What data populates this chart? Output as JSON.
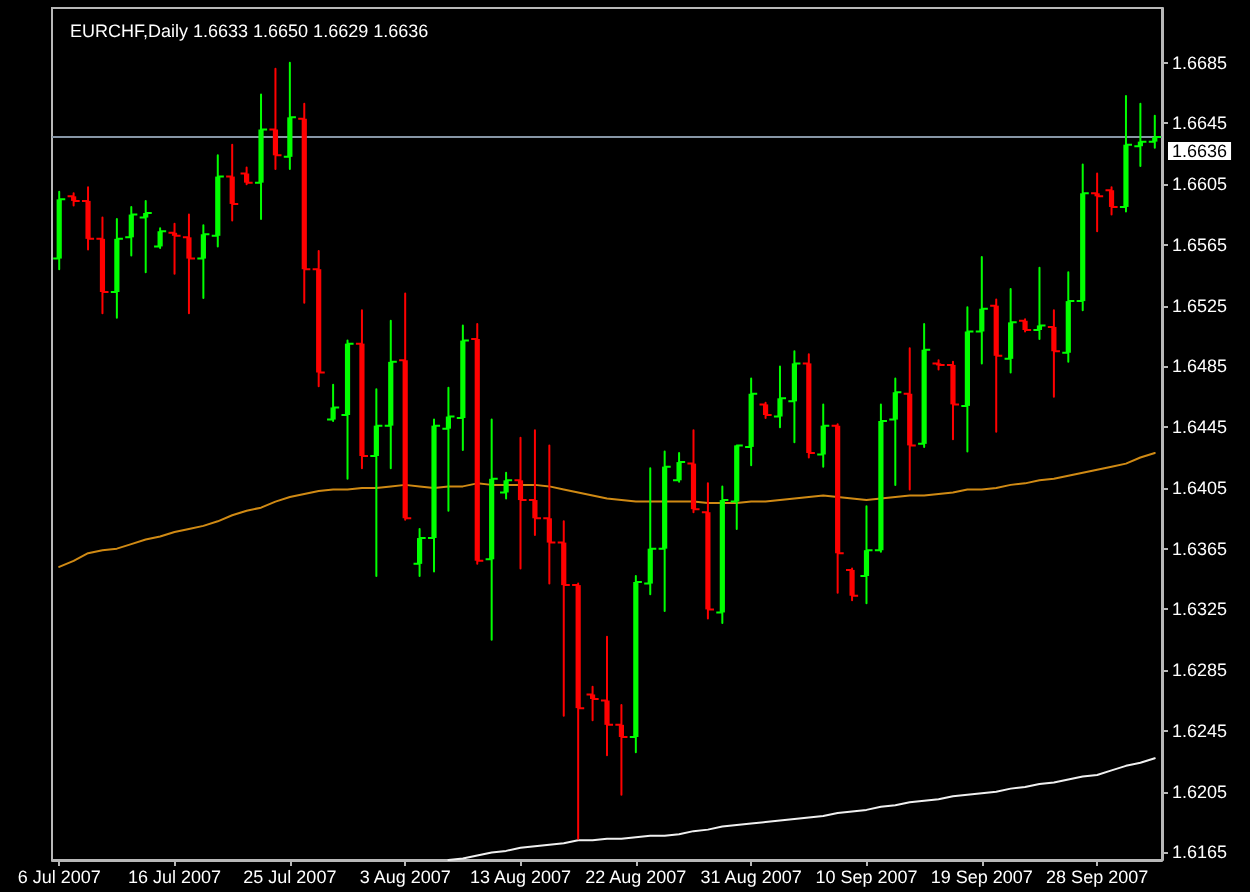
{
  "chart_data": {
    "type": "candlestick",
    "title": "EURCHF,Daily 1.6633 1.6650 1.6629 1.6636",
    "categories": [
      "6 Jul 2007",
      null,
      null,
      null,
      null,
      null,
      null,
      null,
      "16 Jul 2007",
      null,
      null,
      null,
      null,
      null,
      null,
      null,
      "25 Jul 2007",
      null,
      null,
      null,
      null,
      null,
      null,
      null,
      "3 Aug 2007",
      null,
      null,
      null,
      null,
      null,
      null,
      null,
      "13 Aug 2007",
      null,
      null,
      null,
      null,
      null,
      null,
      null,
      "22 Aug 2007",
      null,
      null,
      null,
      null,
      null,
      null,
      null,
      "31 Aug 2007",
      null,
      null,
      null,
      null,
      null,
      null,
      null,
      "10 Sep 2007",
      null,
      null,
      null,
      null,
      null,
      null,
      null,
      "19 Sep 2007",
      null,
      null,
      null,
      null,
      null,
      null,
      null,
      "28 Sep 2007",
      null,
      null,
      null,
      null
    ],
    "ohlc": [
      [
        1.6556,
        1.66,
        1.6549,
        1.6595
      ],
      [
        1.6597,
        1.6599,
        1.6591,
        1.6594
      ],
      [
        1.6594,
        1.6603,
        1.6562,
        1.6569
      ],
      [
        1.6569,
        1.6583,
        1.652,
        1.6534
      ],
      [
        1.6534,
        1.6582,
        1.6517,
        1.6569
      ],
      [
        1.657,
        1.659,
        1.6558,
        1.6585
      ],
      [
        1.6583,
        1.6594,
        1.6547,
        1.6586
      ],
      [
        1.6564,
        1.6576,
        1.6563,
        1.6574
      ],
      [
        1.6573,
        1.6579,
        1.6546,
        1.6571
      ],
      [
        1.657,
        1.6585,
        1.652,
        1.6556
      ],
      [
        1.6556,
        1.6578,
        1.653,
        1.6572
      ],
      [
        1.6571,
        1.6624,
        1.6564,
        1.661
      ],
      [
        1.661,
        1.6631,
        1.6581,
        1.6592
      ],
      [
        1.6612,
        1.6616,
        1.6605,
        1.6606
      ],
      [
        1.6606,
        1.6664,
        1.6582,
        1.6641
      ],
      [
        1.6641,
        1.6681,
        1.6615,
        1.6624
      ],
      [
        1.6623,
        1.6685,
        1.6615,
        1.6649
      ],
      [
        1.6648,
        1.6658,
        1.6527,
        1.6549
      ],
      [
        1.6549,
        1.6561,
        1.6472,
        1.6481
      ],
      [
        1.645,
        1.6473,
        1.6449,
        1.6458
      ],
      [
        1.6453,
        1.6502,
        1.6411,
        1.65
      ],
      [
        1.65,
        1.6522,
        1.6418,
        1.6426
      ],
      [
        1.6426,
        1.647,
        1.6347,
        1.6446
      ],
      [
        1.6446,
        1.6515,
        1.6418,
        1.6488
      ],
      [
        1.6489,
        1.6533,
        1.6384,
        1.6385
      ],
      [
        1.6355,
        1.6378,
        1.6347,
        1.6372
      ],
      [
        1.6372,
        1.645,
        1.635,
        1.6446
      ],
      [
        1.6444,
        1.6471,
        1.639,
        1.6452
      ],
      [
        1.6451,
        1.6512,
        1.643,
        1.6502
      ],
      [
        1.6503,
        1.6513,
        1.6355,
        1.6357
      ],
      [
        1.6358,
        1.645,
        1.6305,
        1.6411
      ],
      [
        1.6402,
        1.6415,
        1.6398,
        1.641
      ],
      [
        1.641,
        1.6438,
        1.6352,
        1.6397
      ],
      [
        1.6397,
        1.6443,
        1.6374,
        1.6385
      ],
      [
        1.6385,
        1.6433,
        1.6342,
        1.6369
      ],
      [
        1.6369,
        1.6383,
        1.6255,
        1.6341
      ],
      [
        1.6341,
        1.6342,
        1.6174,
        1.626
      ],
      [
        1.6269,
        1.6274,
        1.6252,
        1.6266
      ],
      [
        1.6265,
        1.6307,
        1.6229,
        1.6249
      ],
      [
        1.6249,
        1.6262,
        1.6203,
        1.6241
      ],
      [
        1.6241,
        1.6347,
        1.6231,
        1.6343
      ],
      [
        1.6342,
        1.6418,
        1.6335,
        1.6365
      ],
      [
        1.6365,
        1.6429,
        1.6324,
        1.6419
      ],
      [
        1.641,
        1.6428,
        1.6409,
        1.6422
      ],
      [
        1.6421,
        1.6443,
        1.6389,
        1.6391
      ],
      [
        1.6389,
        1.6408,
        1.6319,
        1.6325
      ],
      [
        1.6323,
        1.6406,
        1.6316,
        1.6397
      ],
      [
        1.6396,
        1.6433,
        1.6378,
        1.6433
      ],
      [
        1.6432,
        1.6477,
        1.642,
        1.6467
      ],
      [
        1.646,
        1.6461,
        1.6451,
        1.6453
      ],
      [
        1.6452,
        1.6485,
        1.6445,
        1.6464
      ],
      [
        1.6462,
        1.6495,
        1.6435,
        1.6487
      ],
      [
        1.6487,
        1.6493,
        1.6425,
        1.6428
      ],
      [
        1.6427,
        1.646,
        1.6419,
        1.6446
      ],
      [
        1.6446,
        1.6447,
        1.6336,
        1.6362
      ],
      [
        1.6351,
        1.6352,
        1.6331,
        1.6334
      ],
      [
        1.6347,
        1.6393,
        1.6329,
        1.6364
      ],
      [
        1.6364,
        1.646,
        1.6363,
        1.6449
      ],
      [
        1.645,
        1.6477,
        1.6407,
        1.6468
      ],
      [
        1.6467,
        1.6497,
        1.6404,
        1.6433
      ],
      [
        1.6434,
        1.6513,
        1.6432,
        1.6496
      ],
      [
        1.6487,
        1.6489,
        1.6483,
        1.6486
      ],
      [
        1.6486,
        1.6488,
        1.6437,
        1.646
      ],
      [
        1.6459,
        1.6524,
        1.6429,
        1.6508
      ],
      [
        1.6508,
        1.6557,
        1.6487,
        1.6523
      ],
      [
        1.6525,
        1.6529,
        1.6442,
        1.6492
      ],
      [
        1.649,
        1.6536,
        1.6481,
        1.6514
      ],
      [
        1.6515,
        1.6516,
        1.6508,
        1.6509
      ],
      [
        1.6509,
        1.655,
        1.6503,
        1.6512
      ],
      [
        1.6511,
        1.6522,
        1.6465,
        1.6495
      ],
      [
        1.6494,
        1.6547,
        1.6488,
        1.6528
      ],
      [
        1.6528,
        1.6618,
        1.6522,
        1.6599
      ],
      [
        1.6599,
        1.6612,
        1.6574,
        1.6597
      ],
      [
        1.6601,
        1.6603,
        1.6585,
        1.659
      ],
      [
        1.659,
        1.6663,
        1.6587,
        1.6631
      ],
      [
        1.663,
        1.6658,
        1.6617,
        1.6633
      ],
      [
        1.6633,
        1.665,
        1.6629,
        1.6636
      ]
    ],
    "colors": [
      "#00ff00",
      "#ff0000",
      "#ff0000",
      "#ff0000",
      "#00ff00",
      "#00ff00",
      "#00ff00",
      "#00ff00",
      "#ff0000",
      "#ff0000",
      "#00ff00",
      "#00ff00",
      "#ff0000",
      "#ff0000",
      "#00ff00",
      "#ff0000",
      "#00ff00",
      "#ff0000",
      "#ff0000",
      "#00ff00",
      "#00ff00",
      "#ff0000",
      "#00ff00",
      "#00ff00",
      "#ff0000",
      "#00ff00",
      "#00ff00",
      "#00ff00",
      "#00ff00",
      "#ff0000",
      "#00ff00",
      "#00ff00",
      "#ff0000",
      "#ff0000",
      "#ff0000",
      "#ff0000",
      "#ff0000",
      "#ff0000",
      "#ff0000",
      "#ff0000",
      "#00ff00",
      "#00ff00",
      "#00ff00",
      "#00ff00",
      "#ff0000",
      "#ff0000",
      "#00ff00",
      "#00ff00",
      "#00ff00",
      "#ff0000",
      "#00ff00",
      "#00ff00",
      "#ff0000",
      "#00ff00",
      "#ff0000",
      "#ff0000",
      "#00ff00",
      "#00ff00",
      "#00ff00",
      "#ff0000",
      "#00ff00",
      "#ff0000",
      "#ff0000",
      "#00ff00",
      "#00ff00",
      "#ff0000",
      "#00ff00",
      "#ff0000",
      "#00ff00",
      "#ff0000",
      "#00ff00",
      "#00ff00",
      "#ff0000",
      "#ff0000",
      "#00ff00",
      "#00ff00",
      "#00ff00"
    ],
    "series": [
      {
        "type": "line",
        "color": "#d08a14",
        "values": [
          1.6353,
          1.6357,
          1.6362,
          1.6364,
          1.6365,
          1.6368,
          1.6371,
          1.6373,
          1.6376,
          1.6378,
          1.638,
          1.6383,
          1.6387,
          1.639,
          1.6392,
          1.6396,
          1.6399,
          1.6401,
          1.6403,
          1.6404,
          1.6404,
          1.6405,
          1.6405,
          1.6406,
          1.6407,
          1.6406,
          1.6405,
          1.6406,
          1.6406,
          1.6408,
          1.6407,
          1.6407,
          1.6407,
          1.6407,
          1.6406,
          1.6404,
          1.6402,
          1.64,
          1.6398,
          1.6397,
          1.6396,
          1.6396,
          1.6396,
          1.6396,
          1.6396,
          1.6395,
          1.6395,
          1.6395,
          1.6396,
          1.6396,
          1.6397,
          1.6398,
          1.6399,
          1.64,
          1.6399,
          1.6398,
          1.6397,
          1.6398,
          1.6399,
          1.64,
          1.64,
          1.6401,
          1.6402,
          1.6404,
          1.6404,
          1.6405,
          1.6407,
          1.6408,
          1.641,
          1.6411,
          1.6413,
          1.6415,
          1.6417,
          1.6419,
          1.6421,
          1.6425,
          1.6428
        ]
      },
      {
        "type": "line",
        "color": "#f0f0f0",
        "values": [
          null,
          null,
          null,
          null,
          null,
          null,
          null,
          null,
          null,
          null,
          null,
          null,
          null,
          null,
          null,
          null,
          null,
          null,
          null,
          null,
          null,
          null,
          null,
          null,
          null,
          null,
          null,
          1.616,
          1.6161,
          1.6163,
          1.6165,
          1.6166,
          1.6168,
          1.6169,
          1.617,
          1.6171,
          1.6173,
          1.6173,
          1.6174,
          1.6174,
          1.6175,
          1.6176,
          1.6176,
          1.6177,
          1.6179,
          1.618,
          1.6182,
          1.6183,
          1.6184,
          1.6185,
          1.6186,
          1.6187,
          1.6188,
          1.6189,
          1.6191,
          1.6192,
          1.6193,
          1.6195,
          1.6196,
          1.6198,
          1.6199,
          1.62,
          1.6202,
          1.6203,
          1.6204,
          1.6205,
          1.6207,
          1.6208,
          1.621,
          1.6211,
          1.6213,
          1.6215,
          1.6216,
          1.6219,
          1.6222,
          1.6224,
          1.6227
        ]
      }
    ],
    "ylim": [
      1.616,
      1.6721
    ],
    "yticks": [
      1.6165,
      1.6205,
      1.6245,
      1.6285,
      1.6325,
      1.6365,
      1.6405,
      1.6445,
      1.6485,
      1.6525,
      1.6565,
      1.6605,
      1.6645,
      1.6685
    ],
    "ref_lines": [
      {
        "axis": "y",
        "value": 1.6636,
        "label": "1.6636",
        "color": "#8796a6"
      }
    ]
  }
}
